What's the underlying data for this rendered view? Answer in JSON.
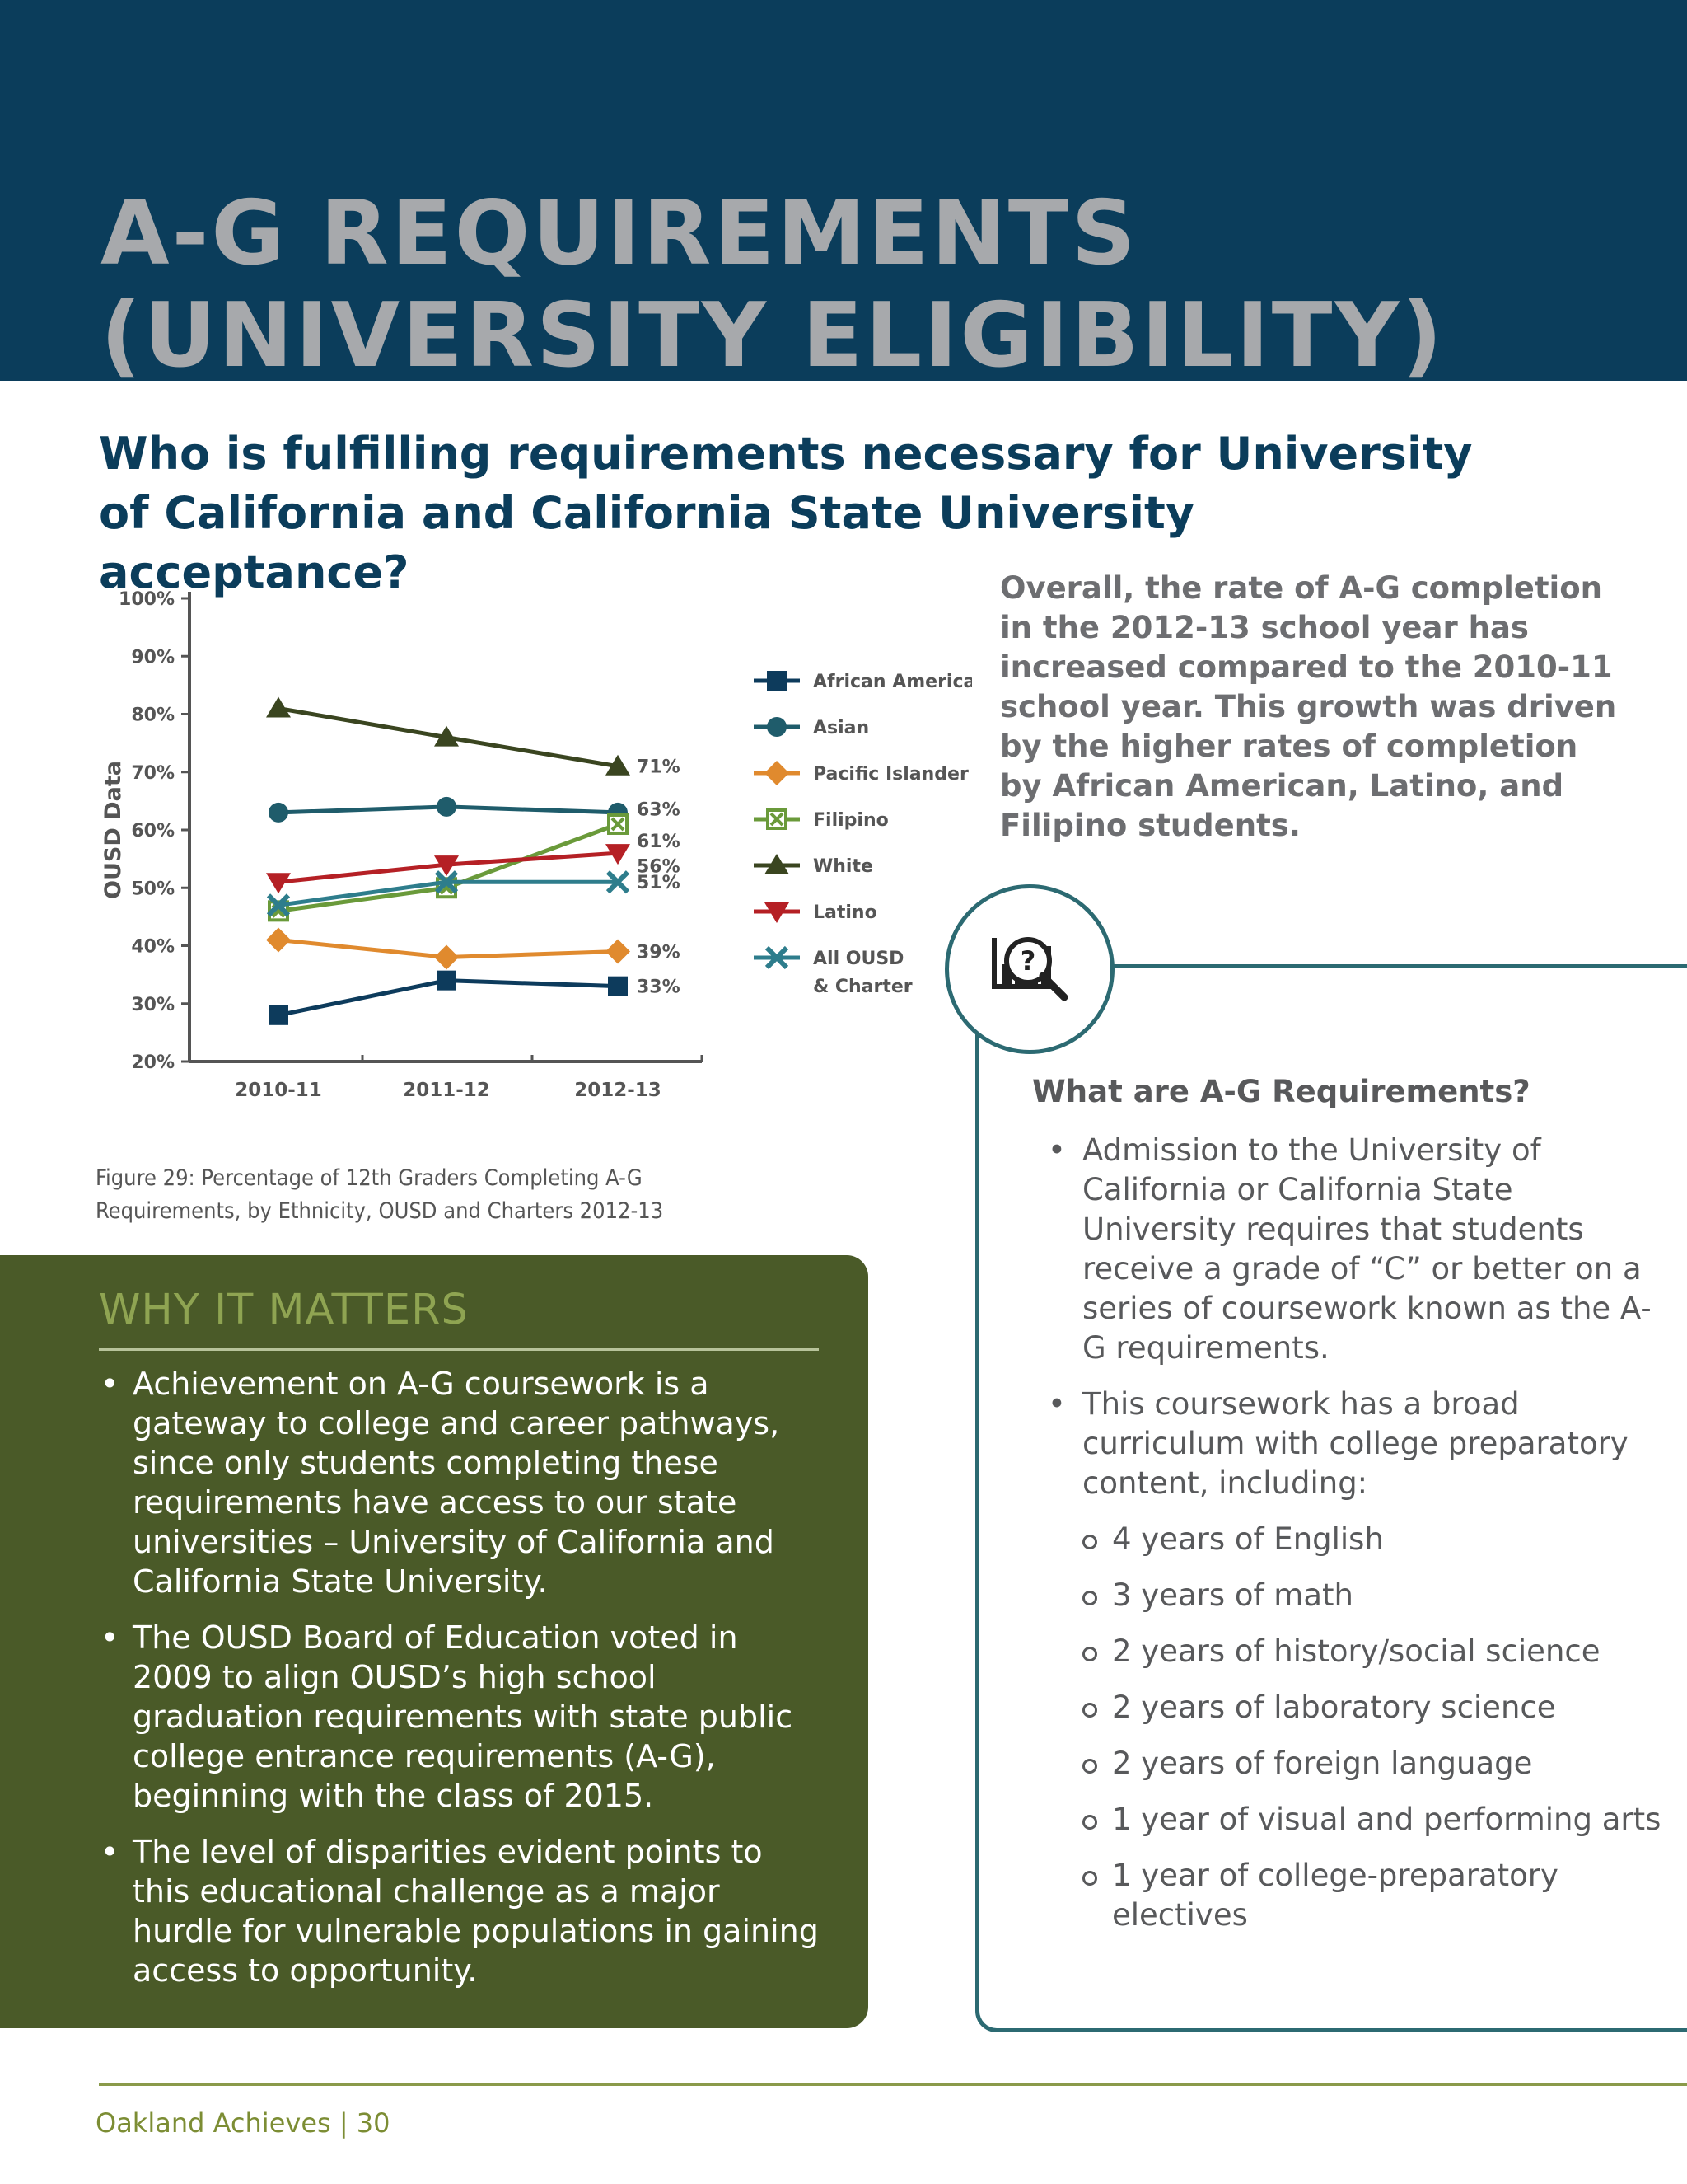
{
  "page": {
    "title_line1": "A-G REQUIREMENTS",
    "title_line2": "(UNIVERSITY ELIGIBILITY)",
    "question": "Who is fulfilling requirements necessary for University of California and California State University acceptance?",
    "overall_text": "Overall, the rate of A-G completion in the 2012-13 school year has increased compared to the 2010-11 school year. This growth was driven by the higher rates of completion by African American, Latino, and Filipino students.",
    "figure_caption_line1": "Figure 29: Percentage of 12th Graders Completing A-G",
    "figure_caption_line2": "Requirements, by Ethnicity, OUSD and Charters 2012-13",
    "footer": "Oakland Achieves | 30",
    "icon": "chart-magnifier-question-icon"
  },
  "why_it_matters": {
    "title": "WHY IT MATTERS",
    "items": [
      "Achievement on A-G coursework is a gateway to college and career pathways, since only students completing these requirements have access to our state universities – University of California and California State University.",
      "The OUSD Board of Education voted in 2009 to align OUSD’s high school graduation requirements with state public college entrance requirements (A-G), beginning with the class of 2015.",
      "The level of disparities evident points to this educational challenge as a major hurdle for vulnerable populations in gaining access to opportunity."
    ]
  },
  "what_are": {
    "title": "What are A-G Requirements?",
    "bullet1": "Admission to the University of California or California State University requires that students receive a grade of “C” or better on a series of coursework known as the A-G requirements.",
    "bullet2": "This coursework has a broad curriculum with college preparatory content, including:",
    "subitems": [
      "4 years of English",
      "3 years of math",
      "2 years of history/social science",
      "2 years of laboratory science",
      "2 years of foreign language",
      "1 year of visual and performing arts",
      "1 year of college-preparatory electives"
    ]
  },
  "chart_data": {
    "type": "line",
    "title": "",
    "xlabel": "",
    "ylabel": "OUSD Data",
    "categories": [
      "2010-11",
      "2011-12",
      "2012-13"
    ],
    "ylim": [
      20,
      100
    ],
    "yticks": [
      "20%",
      "30%",
      "40%",
      "50%",
      "60%",
      "70%",
      "80%",
      "90%",
      "100%"
    ],
    "grid": false,
    "legend_position": "right",
    "series": [
      {
        "name": "African American",
        "values": [
          28,
          34,
          33
        ],
        "end_label": "33%",
        "color": "#0d3b5c",
        "marker": "square"
      },
      {
        "name": "Asian",
        "values": [
          63,
          64,
          63
        ],
        "end_label": "63%",
        "color": "#1f5c6b",
        "marker": "circle"
      },
      {
        "name": "Pacific Islander",
        "values": [
          41,
          38,
          39
        ],
        "end_label": "39%",
        "color": "#e08a2e",
        "marker": "diamond"
      },
      {
        "name": "Filipino",
        "values": [
          46,
          50,
          61
        ],
        "end_label": "61%",
        "color": "#6a9a3a",
        "marker": "boxx"
      },
      {
        "name": "White",
        "values": [
          81,
          76,
          71
        ],
        "end_label": "71%",
        "color": "#3a4520",
        "marker": "triangle"
      },
      {
        "name": "Latino",
        "values": [
          51,
          54,
          56
        ],
        "end_label": "56%",
        "color": "#b52025",
        "marker": "triangle-down"
      },
      {
        "name": "All OUSD & Charter",
        "legend_line1": "All OUSD",
        "legend_line2": "& Charter",
        "values": [
          47,
          51,
          51
        ],
        "end_label": "51%",
        "color": "#2e7d8c",
        "marker": "x"
      }
    ]
  }
}
